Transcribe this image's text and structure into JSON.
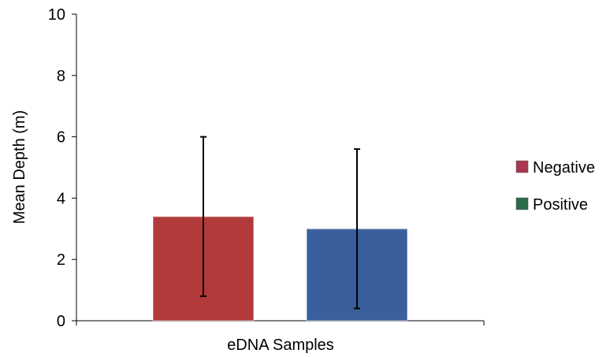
{
  "chart_data": {
    "type": "bar",
    "categories": [
      "eDNA Samples"
    ],
    "series": [
      {
        "name": "Negative",
        "values": [
          3.4
        ],
        "error": [
          2.6
        ],
        "color": "#b23a3a",
        "legend_color": "#a83850"
      },
      {
        "name": "Positive",
        "values": [
          3.0
        ],
        "error": [
          2.6
        ],
        "color": "#3a5f9c",
        "legend_color": "#2a6a4a"
      }
    ],
    "xlabel": "eDNA Samples",
    "ylabel": "Mean Depth (m)",
    "ylim": [
      0,
      10
    ],
    "yticks": [
      "0",
      "2",
      "4",
      "6",
      "8",
      "10"
    ],
    "grid": false,
    "legend_position": "right"
  }
}
